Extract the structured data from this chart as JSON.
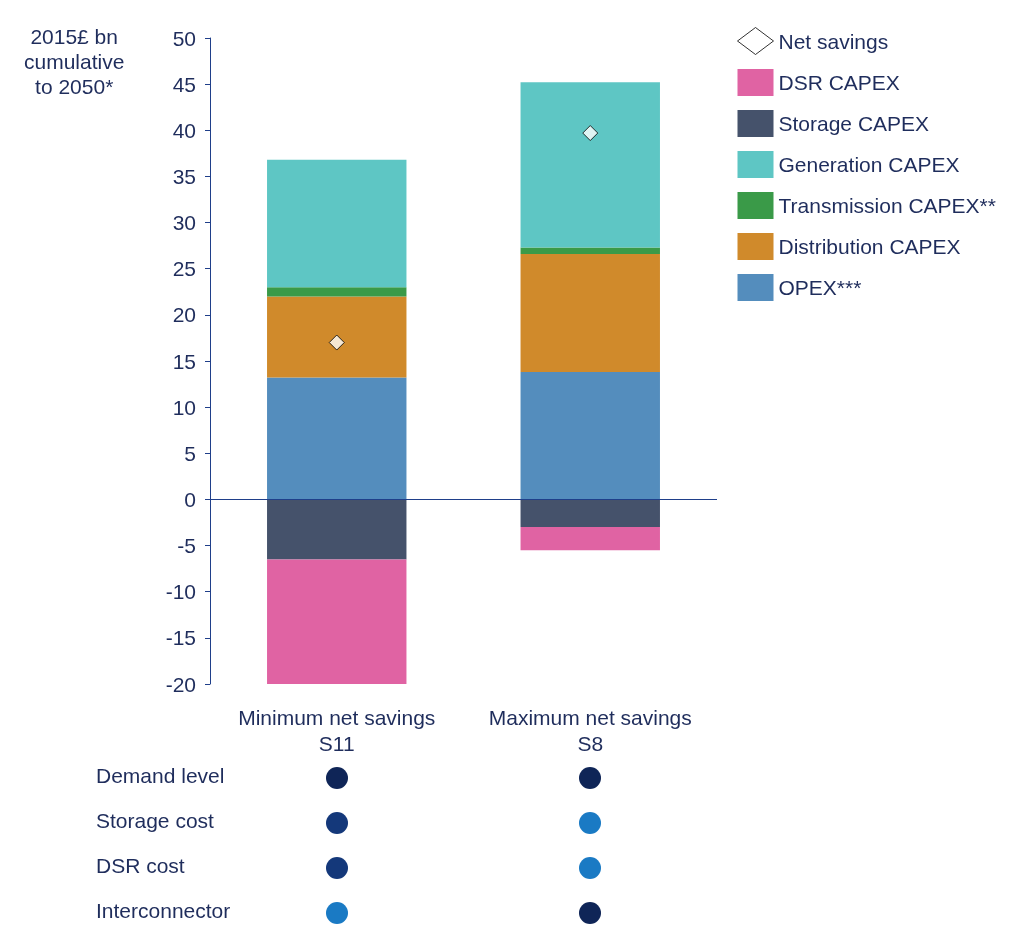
{
  "chart_data": {
    "type": "bar",
    "stacked": true,
    "ylabel": "2015£ bn\ncumulative\nto 2050*",
    "categories": [
      "Minimum net savings\nS11",
      "Maximum net savings\nS8"
    ],
    "series": [
      {
        "name": "OPEX***",
        "color": "#548dbd",
        "values": [
          13.2,
          13.8
        ]
      },
      {
        "name": "Distribution CAPEX",
        "color": "#d08a2b",
        "values": [
          8.8,
          12.8
        ]
      },
      {
        "name": "Transmission CAPEX**",
        "color": "#3a9a48",
        "values": [
          1.0,
          0.7
        ]
      },
      {
        "name": "Generation CAPEX",
        "color": "#5ec6c4",
        "values": [
          13.8,
          17.9
        ]
      },
      {
        "name": "Storage CAPEX",
        "color": "#45526b",
        "values": [
          -6.5,
          -3.0
        ]
      },
      {
        "name": "DSR CAPEX",
        "color": "#e063a3",
        "values": [
          -13.5,
          -2.5
        ]
      },
      {
        "name": "Net savings",
        "type": "scatter",
        "color": "#ffffff",
        "marker": "diamond",
        "x": [
          "Minimum net savings\nS11",
          "Maximum net savings\nS8"
        ],
        "values": [
          17.0,
          39.7
        ]
      }
    ],
    "ylim": [
      -20,
      50
    ],
    "yticks": [
      -20,
      -15,
      -10,
      -5,
      0,
      5,
      10,
      15,
      20,
      25,
      30,
      35,
      40,
      45,
      50
    ],
    "grid": false,
    "legend": "top right",
    "ref_lines": [
      {
        "axis": "y",
        "value": 0,
        "color": "#1f3f8a"
      }
    ],
    "annotations": [
      "Demand level",
      "Storage cost",
      "DSR cost",
      "Interconnector"
    ]
  }
}
